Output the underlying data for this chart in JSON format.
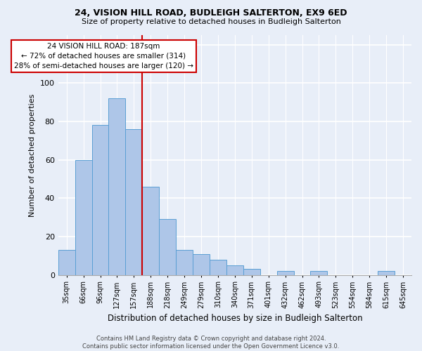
{
  "title1": "24, VISION HILL ROAD, BUDLEIGH SALTERTON, EX9 6ED",
  "title2": "Size of property relative to detached houses in Budleigh Salterton",
  "xlabel": "Distribution of detached houses by size in Budleigh Salterton",
  "ylabel": "Number of detached properties",
  "bin_labels": [
    "35sqm",
    "66sqm",
    "96sqm",
    "127sqm",
    "157sqm",
    "188sqm",
    "218sqm",
    "249sqm",
    "279sqm",
    "310sqm",
    "340sqm",
    "371sqm",
    "401sqm",
    "432sqm",
    "462sqm",
    "493sqm",
    "523sqm",
    "554sqm",
    "584sqm",
    "615sqm",
    "645sqm"
  ],
  "bar_values": [
    13,
    60,
    78,
    92,
    76,
    46,
    29,
    13,
    11,
    8,
    5,
    3,
    0,
    2,
    0,
    2,
    0,
    0,
    0,
    2,
    0
  ],
  "bar_color": "#aec6e8",
  "bar_edge_color": "#5a9fd4",
  "vline_pos": 4.5,
  "vline_color": "#cc0000",
  "annotation_text": "24 VISION HILL ROAD: 187sqm\n← 72% of detached houses are smaller (314)\n28% of semi-detached houses are larger (120) →",
  "annotation_box_color": "#cc0000",
  "ylim": [
    0,
    125
  ],
  "yticks": [
    0,
    20,
    40,
    60,
    80,
    100,
    120
  ],
  "footer": "Contains HM Land Registry data © Crown copyright and database right 2024.\nContains public sector information licensed under the Open Government Licence v3.0.",
  "bg_color": "#e8eef8"
}
